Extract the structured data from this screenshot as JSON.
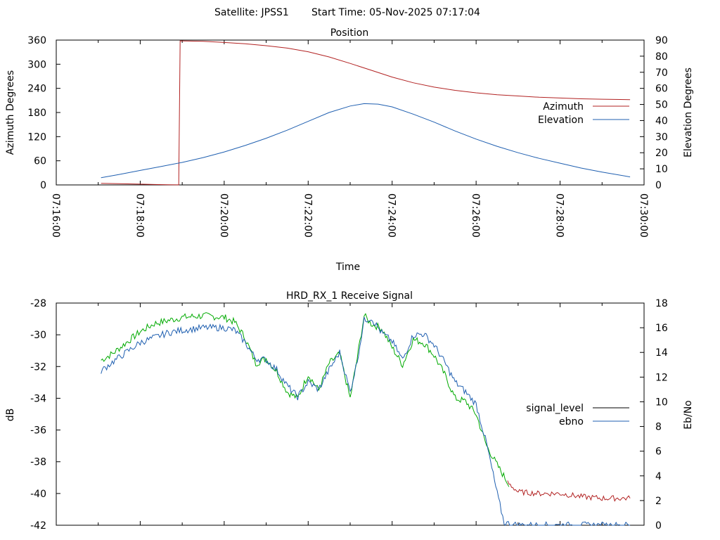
{
  "header": {
    "satellite_label": "Satellite: JPSS1",
    "start_label": "Start Time: 05-Nov-2025 07:17:04"
  },
  "chart_data": [
    {
      "type": "line",
      "title": "Position",
      "xlabel": "Time",
      "ylabel": "Azimuth Degrees",
      "y2label": "Elevation Degrees",
      "xlim": [
        "07:16:00",
        "07:30:00"
      ],
      "ylim": [
        0,
        360
      ],
      "y2lim": [
        0,
        90
      ],
      "x_ticks": [
        "07:16:00",
        "07:18:00",
        "07:20:00",
        "07:22:00",
        "07:24:00",
        "07:26:00",
        "07:28:00",
        "07:30:00"
      ],
      "y_ticks": [
        0,
        60,
        120,
        180,
        240,
        300,
        360
      ],
      "y2_ticks": [
        0,
        10,
        20,
        30,
        40,
        50,
        60,
        70,
        80,
        90
      ],
      "legend_position": "right",
      "series": [
        {
          "name": "Azimuth",
          "axis": "y1",
          "color": "#b22222",
          "points": [
            [
              "07:17:04",
              4
            ],
            [
              "07:17:30",
              3
            ],
            [
              "07:18:00",
              2
            ],
            [
              "07:18:20",
              1
            ],
            [
              "07:18:40",
              0.5
            ],
            [
              "07:18:55",
              0.2
            ],
            [
              "07:18:56",
              180
            ],
            [
              "07:18:57",
              358
            ],
            [
              "07:19:30",
              357
            ],
            [
              "07:20:00",
              354
            ],
            [
              "07:20:30",
              351
            ],
            [
              "07:21:00",
              346
            ],
            [
              "07:21:30",
              340
            ],
            [
              "07:22:00",
              331
            ],
            [
              "07:22:30",
              318
            ],
            [
              "07:23:00",
              302
            ],
            [
              "07:23:30",
              285
            ],
            [
              "07:24:00",
              268
            ],
            [
              "07:24:30",
              254
            ],
            [
              "07:25:00",
              243
            ],
            [
              "07:25:30",
              235
            ],
            [
              "07:26:00",
              229
            ],
            [
              "07:26:30",
              224
            ],
            [
              "07:27:00",
              221
            ],
            [
              "07:27:30",
              218
            ],
            [
              "07:28:00",
              216
            ],
            [
              "07:28:30",
              214
            ],
            [
              "07:29:00",
              213
            ],
            [
              "07:29:40",
              212
            ]
          ]
        },
        {
          "name": "Elevation",
          "axis": "y2",
          "color": "#1f5fb0",
          "points": [
            [
              "07:17:04",
              4.5
            ],
            [
              "07:17:30",
              6.5
            ],
            [
              "07:18:00",
              9
            ],
            [
              "07:18:30",
              11.5
            ],
            [
              "07:19:00",
              14
            ],
            [
              "07:19:30",
              17
            ],
            [
              "07:20:00",
              20.5
            ],
            [
              "07:20:30",
              24.5
            ],
            [
              "07:21:00",
              29
            ],
            [
              "07:21:30",
              34
            ],
            [
              "07:22:00",
              39.5
            ],
            [
              "07:22:30",
              45
            ],
            [
              "07:23:00",
              49
            ],
            [
              "07:23:20",
              50.5
            ],
            [
              "07:23:40",
              50.2
            ],
            [
              "07:24:00",
              48.5
            ],
            [
              "07:24:30",
              44
            ],
            [
              "07:25:00",
              39
            ],
            [
              "07:25:30",
              33.5
            ],
            [
              "07:26:00",
              28.5
            ],
            [
              "07:26:30",
              24
            ],
            [
              "07:27:00",
              20
            ],
            [
              "07:27:30",
              16.5
            ],
            [
              "07:28:00",
              13.5
            ],
            [
              "07:28:30",
              10.5
            ],
            [
              "07:29:00",
              8
            ],
            [
              "07:29:40",
              5
            ]
          ]
        }
      ]
    },
    {
      "type": "line",
      "title": "HRD_RX_1 Receive Signal",
      "ylabel": "dB",
      "y2label": "Eb/No",
      "xlim": [
        "07:16:00",
        "07:30:00"
      ],
      "ylim": [
        -42,
        -28
      ],
      "y2lim": [
        0,
        18
      ],
      "y_ticks": [
        -28,
        -30,
        -32,
        -34,
        -36,
        -38,
        -40,
        -42
      ],
      "y2_ticks": [
        0,
        2,
        4,
        6,
        8,
        10,
        12,
        14,
        16,
        18
      ],
      "legend_position": "right",
      "series": [
        {
          "name": "signal_level",
          "axis": "y1",
          "legend_color": "#000000",
          "color": "#00aa00",
          "color_after_7_26": "#b22222",
          "points": [
            [
              "07:17:04",
              -31.6
            ],
            [
              "07:17:20",
              -31.2
            ],
            [
              "07:17:40",
              -30.5
            ],
            [
              "07:18:00",
              -29.8
            ],
            [
              "07:18:20",
              -29.3
            ],
            [
              "07:18:40",
              -29.1
            ],
            [
              "07:19:00",
              -28.9
            ],
            [
              "07:19:30",
              -28.8
            ],
            [
              "07:20:00",
              -28.9
            ],
            [
              "07:20:15",
              -29.2
            ],
            [
              "07:20:30",
              -30.2
            ],
            [
              "07:20:45",
              -31.8
            ],
            [
              "07:21:00",
              -31.5
            ],
            [
              "07:21:15",
              -32.3
            ],
            [
              "07:21:30",
              -33.6
            ],
            [
              "07:21:45",
              -34.0
            ],
            [
              "07:22:00",
              -32.5
            ],
            [
              "07:22:15",
              -33.5
            ],
            [
              "07:22:30",
              -31.8
            ],
            [
              "07:22:45",
              -31.2
            ],
            [
              "07:23:00",
              -34.0
            ],
            [
              "07:23:10",
              -31.5
            ],
            [
              "07:23:20",
              -28.8
            ],
            [
              "07:23:30",
              -29.3
            ],
            [
              "07:23:45",
              -29.6
            ],
            [
              "07:24:00",
              -30.8
            ],
            [
              "07:24:15",
              -31.9
            ],
            [
              "07:24:30",
              -30.3
            ],
            [
              "07:24:45",
              -30.5
            ],
            [
              "07:25:00",
              -31.3
            ],
            [
              "07:25:15",
              -32.5
            ],
            [
              "07:25:30",
              -34.0
            ],
            [
              "07:25:45",
              -34.2
            ],
            [
              "07:26:00",
              -35.0
            ],
            [
              "07:26:15",
              -37.0
            ],
            [
              "07:26:30",
              -38.2
            ],
            [
              "07:26:45",
              -39.3
            ],
            [
              "07:27:00",
              -39.9
            ],
            [
              "07:27:30",
              -40.0
            ],
            [
              "07:28:00",
              -40.0
            ],
            [
              "07:28:30",
              -40.2
            ],
            [
              "07:29:00",
              -40.3
            ],
            [
              "07:29:40",
              -40.3
            ]
          ]
        },
        {
          "name": "ebno",
          "axis": "y2",
          "color": "#1f5fb0",
          "points": [
            [
              "07:17:04",
              12.5
            ],
            [
              "07:17:20",
              13.2
            ],
            [
              "07:17:40",
              14.0
            ],
            [
              "07:18:00",
              14.8
            ],
            [
              "07:18:20",
              15.2
            ],
            [
              "07:18:40",
              15.6
            ],
            [
              "07:19:00",
              15.8
            ],
            [
              "07:19:30",
              16.0
            ],
            [
              "07:20:00",
              16.0
            ],
            [
              "07:20:15",
              15.8
            ],
            [
              "07:20:30",
              14.8
            ],
            [
              "07:20:45",
              13.5
            ],
            [
              "07:21:00",
              13.4
            ],
            [
              "07:21:15",
              12.6
            ],
            [
              "07:21:30",
              11.3
            ],
            [
              "07:21:45",
              10.4
            ],
            [
              "07:22:00",
              11.6
            ],
            [
              "07:22:15",
              11.0
            ],
            [
              "07:22:30",
              12.6
            ],
            [
              "07:22:45",
              14.0
            ],
            [
              "07:23:00",
              10.8
            ],
            [
              "07:23:10",
              13.3
            ],
            [
              "07:23:20",
              16.6
            ],
            [
              "07:23:30",
              16.8
            ],
            [
              "07:23:45",
              15.6
            ],
            [
              "07:24:00",
              14.9
            ],
            [
              "07:24:15",
              13.4
            ],
            [
              "07:24:30",
              15.4
            ],
            [
              "07:24:45",
              15.5
            ],
            [
              "07:25:00",
              14.6
            ],
            [
              "07:25:15",
              13.2
            ],
            [
              "07:25:30",
              11.6
            ],
            [
              "07:25:45",
              10.8
            ],
            [
              "07:26:00",
              9.8
            ],
            [
              "07:26:15",
              6.6
            ],
            [
              "07:26:30",
              2.6
            ],
            [
              "07:26:40",
              0.2
            ],
            [
              "07:27:00",
              0.0
            ],
            [
              "07:29:40",
              0.0
            ]
          ]
        }
      ]
    }
  ]
}
